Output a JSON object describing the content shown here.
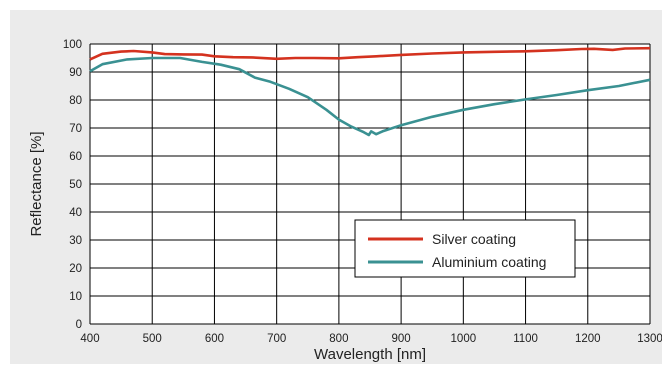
{
  "chart_data": {
    "type": "line",
    "title": "",
    "xlabel": "Wavelength [nm]",
    "ylabel": "Reflectance [%]",
    "xlim": [
      400,
      1300
    ],
    "ylim": [
      0,
      100
    ],
    "xticks": [
      400,
      500,
      600,
      700,
      800,
      900,
      1000,
      1100,
      1200,
      1300
    ],
    "yticks": [
      0,
      10,
      20,
      30,
      40,
      50,
      60,
      70,
      80,
      90,
      100
    ],
    "grid": true,
    "legend_position": "bottom-right",
    "series": [
      {
        "name": "Silver coating",
        "color": "#d4321f",
        "points": [
          [
            400,
            94.5
          ],
          [
            420,
            96.5
          ],
          [
            450,
            97.3
          ],
          [
            470,
            97.5
          ],
          [
            500,
            97.0
          ],
          [
            520,
            96.4
          ],
          [
            550,
            96.3
          ],
          [
            580,
            96.2
          ],
          [
            600,
            95.6
          ],
          [
            630,
            95.3
          ],
          [
            660,
            95.2
          ],
          [
            700,
            94.7
          ],
          [
            730,
            95.0
          ],
          [
            760,
            95.0
          ],
          [
            800,
            94.9
          ],
          [
            830,
            95.3
          ],
          [
            860,
            95.6
          ],
          [
            900,
            96.1
          ],
          [
            950,
            96.6
          ],
          [
            1000,
            97.0
          ],
          [
            1050,
            97.2
          ],
          [
            1100,
            97.4
          ],
          [
            1150,
            97.8
          ],
          [
            1190,
            98.2
          ],
          [
            1210,
            98.3
          ],
          [
            1240,
            97.9
          ],
          [
            1260,
            98.4
          ],
          [
            1300,
            98.5
          ]
        ]
      },
      {
        "name": "Aluminium coating",
        "color": "#3a9192",
        "points": [
          [
            400,
            90.3
          ],
          [
            420,
            92.8
          ],
          [
            460,
            94.5
          ],
          [
            500,
            95.0
          ],
          [
            545,
            95.0
          ],
          [
            580,
            93.6
          ],
          [
            610,
            92.6
          ],
          [
            640,
            91.0
          ],
          [
            665,
            88.0
          ],
          [
            690,
            86.5
          ],
          [
            720,
            84.0
          ],
          [
            750,
            81.0
          ],
          [
            780,
            76.5
          ],
          [
            800,
            73.0
          ],
          [
            820,
            70.5
          ],
          [
            840,
            68.5
          ],
          [
            848,
            67.5
          ],
          [
            852,
            68.8
          ],
          [
            860,
            67.8
          ],
          [
            870,
            68.8
          ],
          [
            900,
            71.0
          ],
          [
            950,
            74.0
          ],
          [
            1000,
            76.5
          ],
          [
            1050,
            78.5
          ],
          [
            1100,
            80.2
          ],
          [
            1150,
            81.8
          ],
          [
            1200,
            83.5
          ],
          [
            1250,
            85.0
          ],
          [
            1300,
            87.2
          ]
        ]
      }
    ]
  }
}
